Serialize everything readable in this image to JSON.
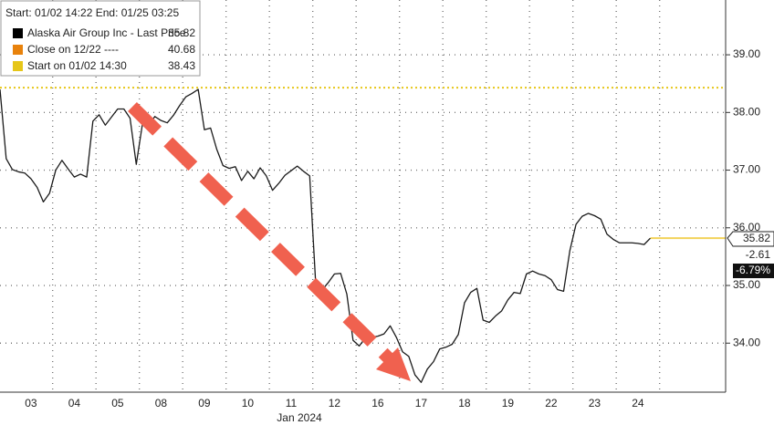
{
  "chart_data": {
    "type": "line",
    "header": "Start: 01/02 14:22 End: 01/25 03:25",
    "x_sublabel": "Jan 2024",
    "categories": [
      null,
      null,
      null,
      null,
      null,
      "03",
      null,
      null,
      null,
      null,
      null,
      null,
      "04",
      null,
      null,
      null,
      null,
      null,
      null,
      "05",
      null,
      null,
      null,
      null,
      null,
      null,
      "08",
      null,
      null,
      null,
      null,
      null,
      null,
      "09",
      null,
      null,
      null,
      null,
      null,
      null,
      "10",
      null,
      null,
      null,
      null,
      null,
      null,
      "11",
      null,
      null,
      null,
      null,
      null,
      null,
      "12",
      null,
      null,
      null,
      null,
      null,
      null,
      "16",
      null,
      null,
      null,
      null,
      null,
      null,
      "17",
      null,
      null,
      null,
      null,
      null,
      null,
      "18",
      null,
      null,
      null,
      null,
      null,
      null,
      "19",
      null,
      null,
      null,
      null,
      null,
      null,
      "22",
      null,
      null,
      null,
      null,
      null,
      null,
      "23",
      null,
      null,
      null,
      null,
      null,
      null,
      "24",
      null,
      null
    ],
    "series": [
      {
        "name": "Alaska Air Group Inc - Last Price",
        "color": "#1a1a1a",
        "legend_color": "#000000",
        "values": [
          38.4,
          37.2,
          37.01,
          36.97,
          36.95,
          36.85,
          36.7,
          36.45,
          36.6,
          37.0,
          37.17,
          37.02,
          36.88,
          36.93,
          36.88,
          37.85,
          37.96,
          37.78,
          37.92,
          38.06,
          38.06,
          37.9,
          37.1,
          37.8,
          37.78,
          37.93,
          37.86,
          37.82,
          37.95,
          38.12,
          38.27,
          38.33,
          38.4,
          37.7,
          37.73,
          37.36,
          37.08,
          37.03,
          37.06,
          36.82,
          36.98,
          36.85,
          37.04,
          36.9,
          36.65,
          36.77,
          36.91,
          36.99,
          37.07,
          36.98,
          36.9,
          34.98,
          34.92,
          35.05,
          35.2,
          35.21,
          34.85,
          34.05,
          33.95,
          34.09,
          34.1,
          34.12,
          34.16,
          34.3,
          34.1,
          33.85,
          33.77,
          33.45,
          33.32,
          33.55,
          33.68,
          33.9,
          33.93,
          33.98,
          34.15,
          34.7,
          34.88,
          34.95,
          34.4,
          34.36,
          34.47,
          34.56,
          34.75,
          34.88,
          34.86,
          35.2,
          35.25,
          35.2,
          35.17,
          35.1,
          34.93,
          34.9,
          35.6,
          36.06,
          36.2,
          36.25,
          36.21,
          36.15,
          35.89,
          35.8,
          35.74,
          35.74,
          35.74,
          35.73,
          35.71,
          35.82
        ]
      }
    ],
    "reference_lines": [
      {
        "name": "Close on 12/22 ----",
        "value": 40.68,
        "color": "#e8820c"
      },
      {
        "name": "Start on 01/02 14:30",
        "value": 38.43,
        "color": "#e6c619"
      }
    ],
    "last_price_line_color": "#f2d25a",
    "price_tag": {
      "change": -2.61,
      "change_pct": {
        "value": -6.79,
        "label": "-6.79%"
      }
    },
    "ylim": [
      33.15,
      39.95
    ],
    "yticks": [
      {
        "value": 34,
        "label": "34.00"
      },
      {
        "value": 35,
        "label": "35.00"
      },
      {
        "value": 36,
        "label": "36.00"
      },
      {
        "value": 37,
        "label": "37.00"
      },
      {
        "value": 38,
        "label": "38.00"
      },
      {
        "value": 39,
        "label": "39.00"
      }
    ],
    "grid": true
  }
}
